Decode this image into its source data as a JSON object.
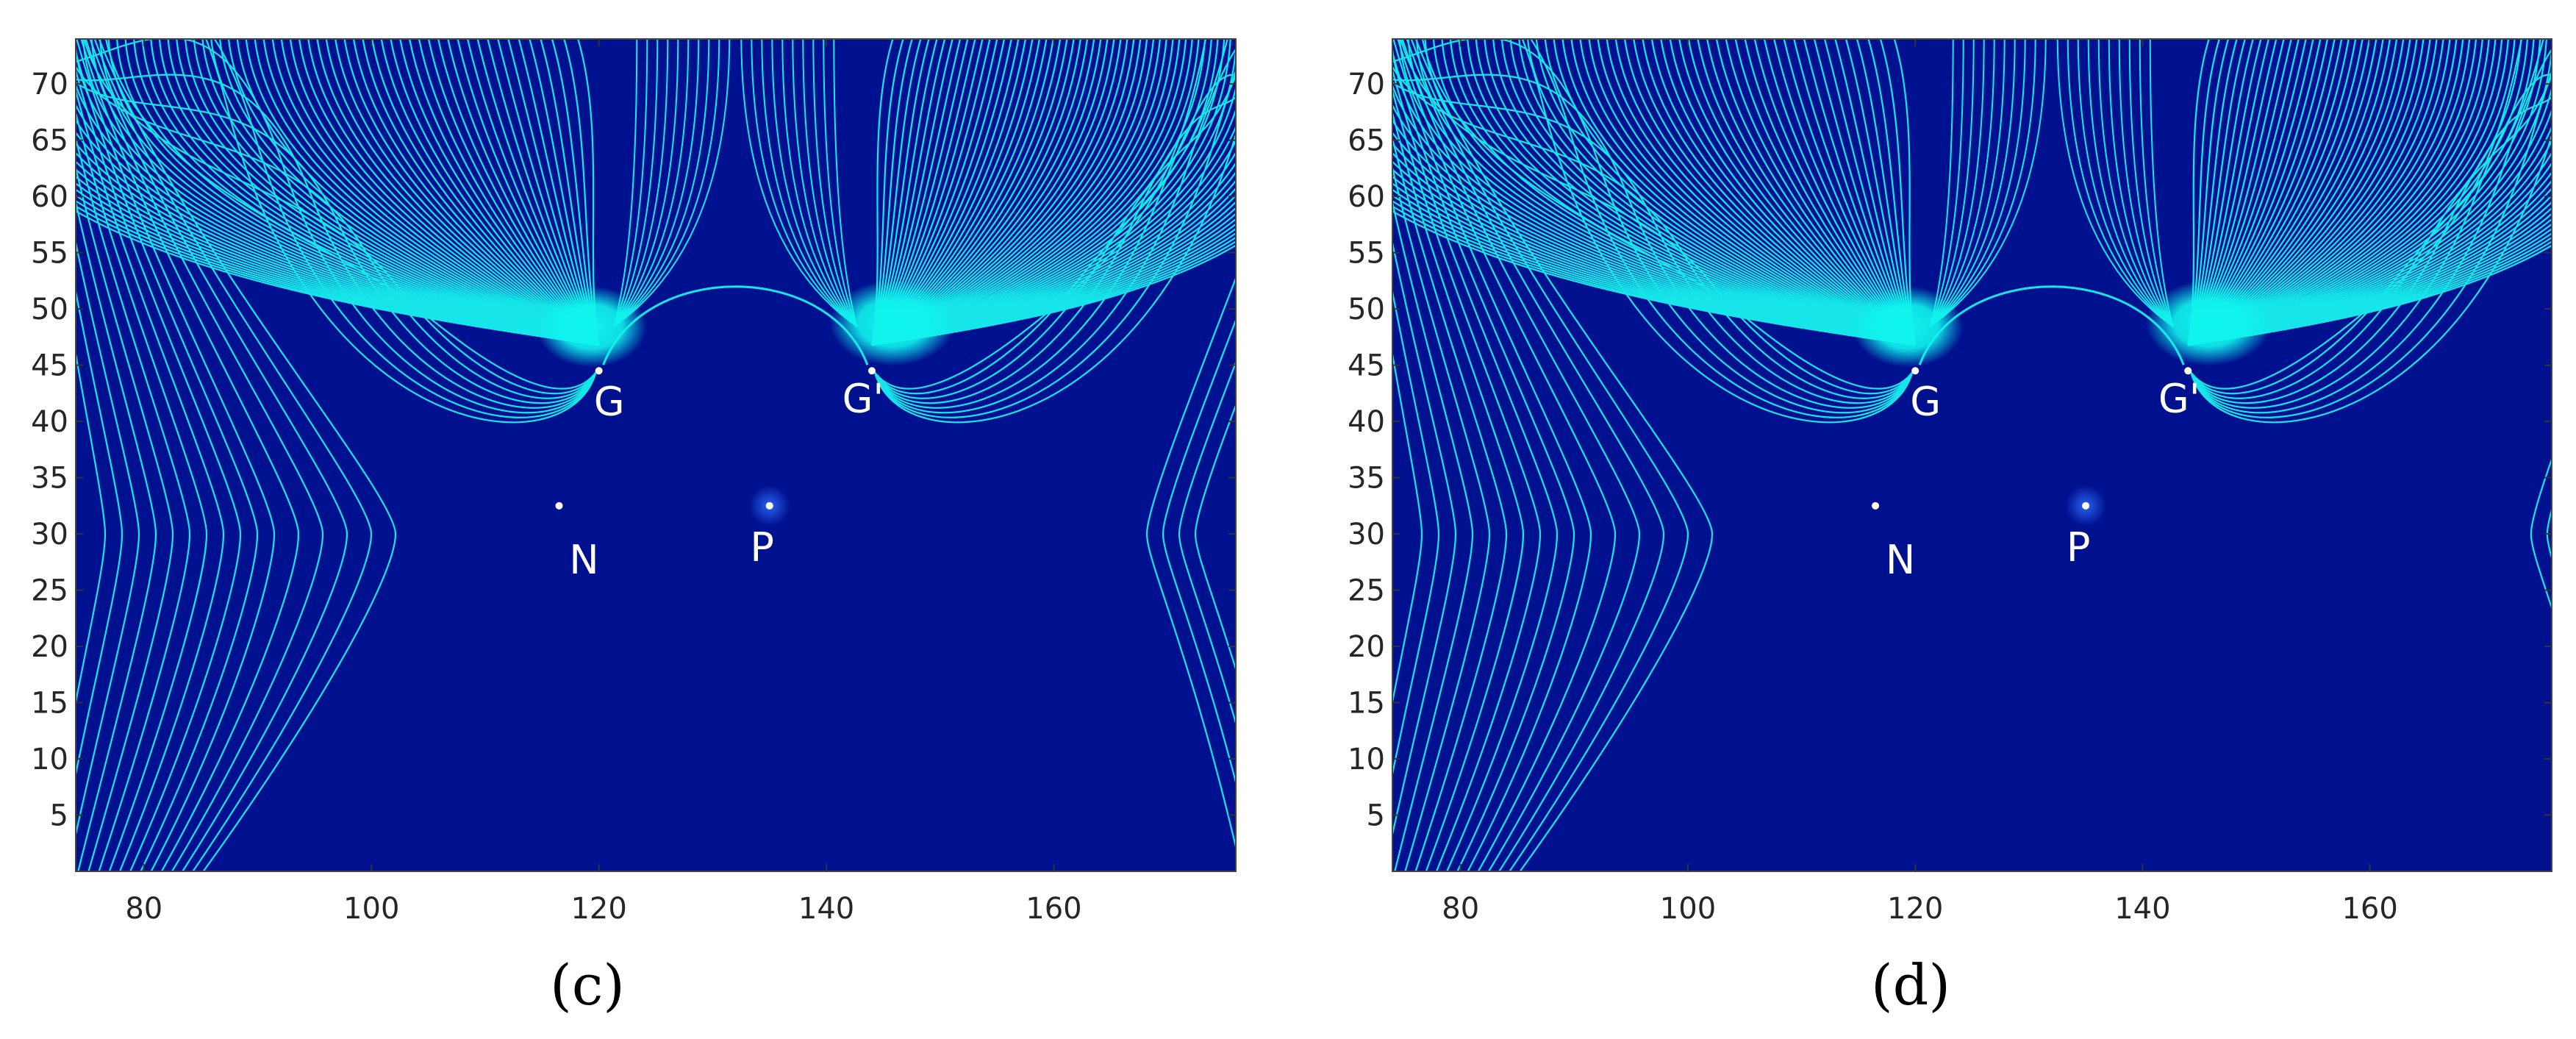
{
  "chart_data": [
    {
      "type": "field-line plot",
      "panel_label": "(c)",
      "xlim": [
        74,
        176
      ],
      "ylim": [
        0,
        74
      ],
      "xticks": [
        "80",
        "100",
        "120",
        "140",
        "160"
      ],
      "xtick_values": [
        80,
        100,
        120,
        140,
        160
      ],
      "yticks": [
        "5",
        "10",
        "15",
        "20",
        "25",
        "30",
        "35",
        "40",
        "45",
        "50",
        "55",
        "60",
        "65",
        "70"
      ],
      "ytick_values": [
        5,
        10,
        15,
        20,
        25,
        30,
        35,
        40,
        45,
        50,
        55,
        60,
        65,
        70
      ],
      "points": [
        {
          "label": "G",
          "x": 120,
          "y": 44.5
        },
        {
          "label": "G'",
          "x": 144,
          "y": 44.5
        },
        {
          "label": "N",
          "x": 116.5,
          "y": 32.5
        },
        {
          "label": "P",
          "x": 135,
          "y": 32.5
        }
      ],
      "right_edge_loop_x": 174
    },
    {
      "type": "field-line plot",
      "panel_label": "(d)",
      "xlim": [
        74,
        176
      ],
      "ylim": [
        0,
        74
      ],
      "xticks": [
        "80",
        "100",
        "120",
        "140",
        "160"
      ],
      "xtick_values": [
        80,
        100,
        120,
        140,
        160
      ],
      "yticks": [
        "5",
        "10",
        "15",
        "20",
        "25",
        "30",
        "35",
        "40",
        "45",
        "50",
        "55",
        "60",
        "65",
        "70"
      ],
      "ytick_values": [
        5,
        10,
        15,
        20,
        25,
        30,
        35,
        40,
        45,
        50,
        55,
        60,
        65,
        70
      ],
      "points": [
        {
          "label": "G",
          "x": 120,
          "y": 44.5
        },
        {
          "label": "G'",
          "x": 144,
          "y": 44.5
        },
        {
          "label": "N",
          "x": 116.5,
          "y": 32.5
        },
        {
          "label": "P",
          "x": 135,
          "y": 32.5
        }
      ],
      "right_edge_loop_x": 180
    }
  ],
  "colors": {
    "background": "#00118f",
    "field_line": "#16e6ea",
    "source_glow": "#10f4ee",
    "point": "#ffffff",
    "p_glow": "#2d6cff"
  }
}
